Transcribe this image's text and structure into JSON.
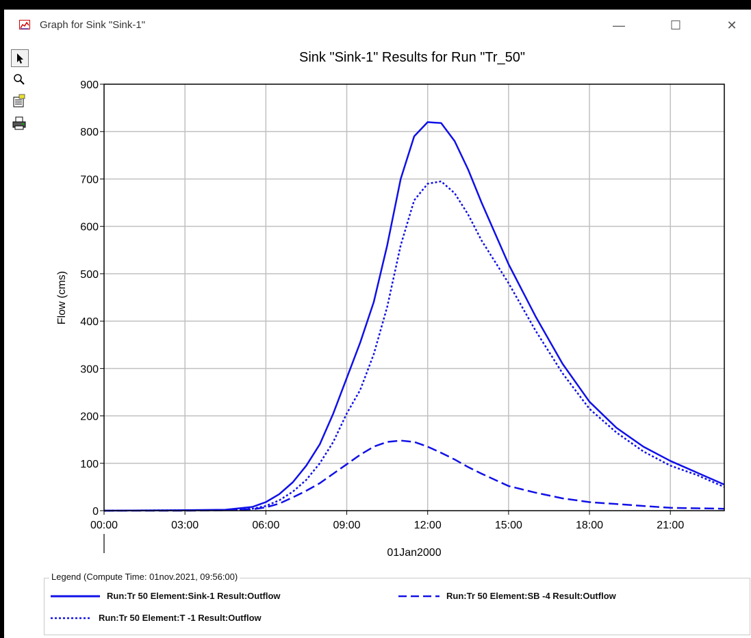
{
  "window": {
    "title": "Graph for Sink \"Sink-1\"",
    "controls": {
      "minimize": "—",
      "maximize": "☐",
      "close": "✕"
    }
  },
  "toolbar": {
    "tools": [
      {
        "name": "select-arrow-icon"
      },
      {
        "name": "zoom-magnifier-icon"
      },
      {
        "name": "properties-icon"
      },
      {
        "name": "print-icon"
      }
    ]
  },
  "colors": {
    "series": "#1010e8",
    "grid": "#c0c0c0"
  },
  "legend": {
    "title": "Legend (Compute Time: 01nov.2021, 09:56:00)",
    "items": [
      {
        "label": "Run:Tr 50 Element:Sink-1 Result:Outflow",
        "style": "solid"
      },
      {
        "label": "Run:Tr 50 Element:SB -4 Result:Outflow",
        "style": "dashed"
      },
      {
        "label": "Run:Tr 50 Element:T -1 Result:Outflow",
        "style": "dotted"
      }
    ]
  },
  "chart_data": {
    "type": "line",
    "title": "Sink \"Sink-1\" Results for Run \"Tr_50\"",
    "xlabel": "01Jan2000",
    "ylabel": "Flow (cms)",
    "xlim": [
      0,
      23
    ],
    "ylim": [
      0,
      900
    ],
    "x_ticks": [
      {
        "value": 0,
        "label": "00:00"
      },
      {
        "value": 3,
        "label": "03:00"
      },
      {
        "value": 6,
        "label": "06:00"
      },
      {
        "value": 9,
        "label": "09:00"
      },
      {
        "value": 12,
        "label": "12:00"
      },
      {
        "value": 15,
        "label": "15:00"
      },
      {
        "value": 18,
        "label": "18:00"
      },
      {
        "value": 21,
        "label": "21:00"
      }
    ],
    "y_ticks": [
      0,
      100,
      200,
      300,
      400,
      500,
      600,
      700,
      800,
      900
    ],
    "grid": true,
    "legend_position": "bottom",
    "series": [
      {
        "style": "solid",
        "x": [
          0,
          3,
          4.5,
          5.5,
          6,
          6.5,
          7,
          7.5,
          8,
          8.5,
          9,
          9.5,
          10,
          10.5,
          11,
          11.5,
          12,
          12.5,
          13,
          13.5,
          14,
          15,
          16,
          17,
          18,
          19,
          20,
          21,
          22,
          23
        ],
        "y": [
          0,
          1,
          2,
          8,
          18,
          35,
          60,
          95,
          140,
          205,
          280,
          355,
          440,
          560,
          700,
          790,
          820,
          818,
          780,
          720,
          650,
          520,
          410,
          310,
          230,
          175,
          135,
          105,
          80,
          55
        ]
      },
      {
        "style": "dotted",
        "x": [
          0,
          3,
          4.5,
          5.5,
          6,
          6.5,
          7,
          7.5,
          8,
          8.5,
          9,
          9.5,
          10,
          10.5,
          11,
          11.5,
          12,
          12.5,
          13,
          13.5,
          14,
          15,
          16,
          17,
          18,
          19,
          20,
          21,
          22,
          23
        ],
        "y": [
          0,
          1,
          1,
          4,
          10,
          22,
          40,
          65,
          100,
          145,
          205,
          255,
          330,
          430,
          560,
          655,
          690,
          695,
          670,
          625,
          570,
          480,
          380,
          290,
          215,
          165,
          125,
          95,
          75,
          50
        ]
      },
      {
        "style": "dashed",
        "x": [
          0,
          3,
          4.5,
          5.5,
          6,
          6.5,
          7,
          7.5,
          8,
          8.5,
          9,
          9.5,
          10,
          10.5,
          11,
          11.5,
          12,
          12.5,
          13,
          13.5,
          14,
          15,
          16,
          17,
          18,
          19,
          20,
          21,
          22,
          23
        ],
        "y": [
          0,
          0,
          1,
          3,
          7,
          15,
          28,
          42,
          58,
          78,
          98,
          118,
          135,
          145,
          148,
          145,
          135,
          122,
          108,
          92,
          78,
          52,
          38,
          26,
          18,
          14,
          10,
          6,
          5,
          4
        ]
      }
    ]
  }
}
